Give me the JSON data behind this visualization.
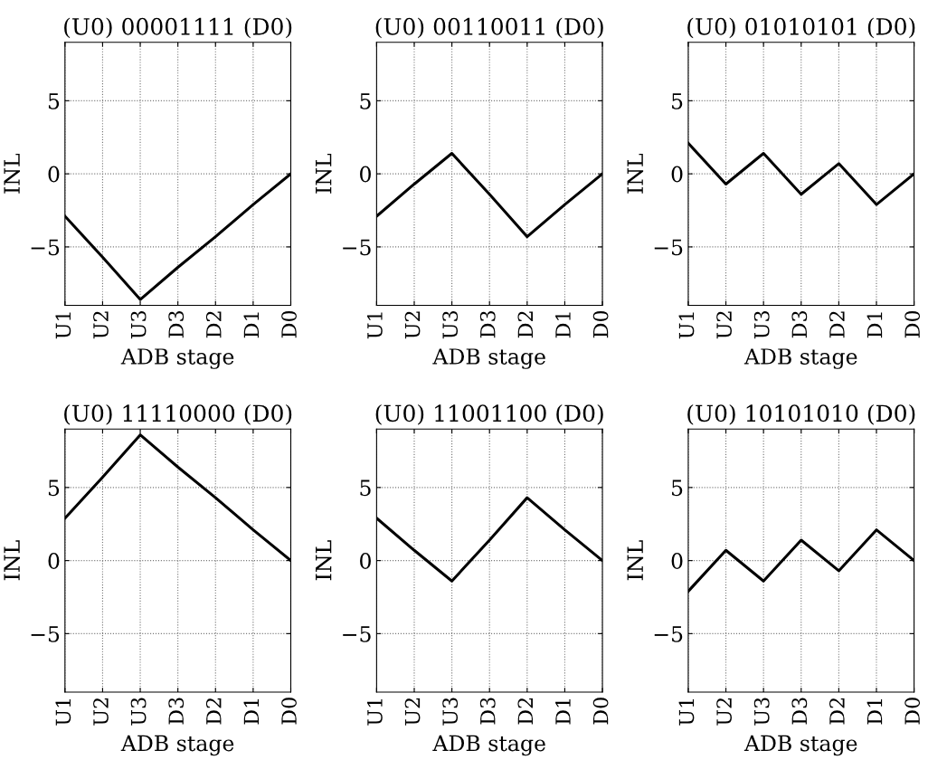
{
  "chart_data": [
    {
      "type": "line",
      "title": "(U0) 00001111 (D0)",
      "xlabel": "ADB stage",
      "ylabel": "INL",
      "categories": [
        "U1",
        "U2",
        "U3",
        "D3",
        "D2",
        "D1",
        "D0"
      ],
      "values": [
        -2.9,
        -5.7,
        -8.6,
        -6.4,
        -4.3,
        -2.1,
        0
      ],
      "color": "#000000",
      "ylim": [
        -9,
        9
      ],
      "yticks": [
        -5,
        0,
        5
      ],
      "grid": true,
      "line_style": "solid"
    },
    {
      "type": "line",
      "title": "(U0) 00110011 (D0)",
      "xlabel": "ADB stage",
      "ylabel": "INL",
      "categories": [
        "U1",
        "U2",
        "U3",
        "D3",
        "D2",
        "D1",
        "D0"
      ],
      "values": [
        -2.9,
        -0.7,
        1.4,
        -1.4,
        -4.3,
        -2.1,
        0
      ],
      "color": "#000000",
      "ylim": [
        -9,
        9
      ],
      "yticks": [
        -5,
        0,
        5
      ],
      "grid": true,
      "line_style": "solid"
    },
    {
      "type": "line",
      "title": "(U0) 01010101 (D0)",
      "xlabel": "ADB stage",
      "ylabel": "INL",
      "categories": [
        "U1",
        "U2",
        "U3",
        "D3",
        "D2",
        "D1",
        "D0"
      ],
      "values": [
        2.1,
        -0.7,
        1.4,
        -1.4,
        0.7,
        -2.1,
        0
      ],
      "color": "#000000",
      "ylim": [
        -9,
        9
      ],
      "yticks": [
        -5,
        0,
        5
      ],
      "grid": true,
      "line_style": "solid"
    },
    {
      "type": "line",
      "title": "(U0) 11110000 (D0)",
      "xlabel": "ADB stage",
      "ylabel": "INL",
      "categories": [
        "U1",
        "U2",
        "U3",
        "D3",
        "D2",
        "D1",
        "D0"
      ],
      "values": [
        2.9,
        5.7,
        8.6,
        6.4,
        4.3,
        2.1,
        0
      ],
      "color": "#000000",
      "ylim": [
        -9,
        9
      ],
      "yticks": [
        -5,
        0,
        5
      ],
      "grid": true,
      "line_style": "solid"
    },
    {
      "type": "line",
      "title": "(U0) 11001100 (D0)",
      "xlabel": "ADB stage",
      "ylabel": "INL",
      "categories": [
        "U1",
        "U2",
        "U3",
        "D3",
        "D2",
        "D1",
        "D0"
      ],
      "values": [
        2.9,
        0.7,
        -1.4,
        1.4,
        4.3,
        2.1,
        0
      ],
      "color": "#000000",
      "ylim": [
        -9,
        9
      ],
      "yticks": [
        -5,
        0,
        5
      ],
      "grid": true,
      "line_style": "solid"
    },
    {
      "type": "line",
      "title": "(U0) 10101010 (D0)",
      "xlabel": "ADB stage",
      "ylabel": "INL",
      "categories": [
        "U1",
        "U2",
        "U3",
        "D3",
        "D2",
        "D1",
        "D0"
      ],
      "values": [
        -2.1,
        0.7,
        -1.4,
        1.4,
        -0.7,
        2.1,
        0
      ],
      "color": "#000000",
      "ylim": [
        -9,
        9
      ],
      "yticks": [
        -5,
        0,
        5
      ],
      "grid": true,
      "line_style": "solid"
    }
  ]
}
